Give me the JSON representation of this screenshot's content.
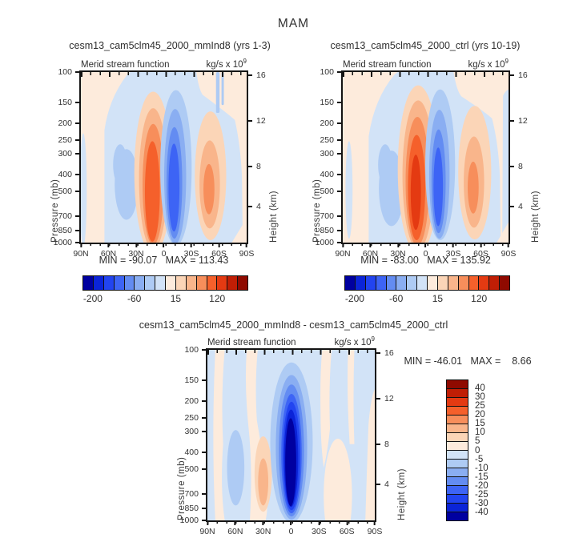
{
  "title": "MAM",
  "panel_header": {
    "title": "Merid stream function",
    "units": "kg/s x 10",
    "exp": "9"
  },
  "panels": {
    "left": {
      "subtitle": "cesm13_cam5clm45_2000_mmInd8 (yrs 1-3)",
      "min_max": "MIN = -90.07   MAX = 113.43"
    },
    "right": {
      "subtitle": "cesm13_cam5clm45_2000_ctrl (yrs 10-19)",
      "min_max": "MIN = -83.00   MAX = 135.92"
    },
    "diff": {
      "subtitle": "cesm13_cam5clm45_2000_mmInd8 - cesm13_cam5clm45_2000_ctrl",
      "min_max": "MIN = -46.01   MAX =    8.66"
    }
  },
  "axes": {
    "pressure_label": "Pressure (mb)",
    "height_label": "Height (km)",
    "pressure_ticks": [
      "100",
      "150",
      "200",
      "250",
      "300",
      "400",
      "500",
      "700",
      "850",
      "1000"
    ],
    "height_ticks": [
      "16",
      "12",
      "8",
      "4"
    ],
    "lon_ticks": [
      "90N",
      "60N",
      "30N",
      "0",
      "30S",
      "60S",
      "90S"
    ]
  },
  "palette": [
    "#0000A0",
    "#0B24D8",
    "#2244F0",
    "#3D64F5",
    "#638CF2",
    "#8AAEF2",
    "#AECBF4",
    "#D2E3F7",
    "#FDEBDC",
    "#FBD5B7",
    "#F9B58B",
    "#F78E5B",
    "#F5602B",
    "#E43A12",
    "#C01E05",
    "#8F0A00"
  ],
  "colorbar": {
    "labels": [
      "-200",
      "-60",
      "15",
      "120"
    ]
  },
  "diff_legend": {
    "colors": [
      "#8F0A00",
      "#C01E05",
      "#E43A12",
      "#F5602B",
      "#F78E5B",
      "#F9B58B",
      "#FBD5B7",
      "#FDEBDC",
      "#D2E3F7",
      "#AECBF4",
      "#8AAEF2",
      "#638CF2",
      "#3D64F5",
      "#2244F0",
      "#0B24D8",
      "#0000A0"
    ],
    "labels": [
      "40",
      "30",
      "25",
      "20",
      "15",
      "10",
      "5",
      "0",
      "-5",
      "-10",
      "-15",
      "-20",
      "-25",
      "-30",
      "-40"
    ]
  },
  "chart_data": [
    {
      "type": "contour",
      "title": "cesm13_cam5clm45_2000_mmInd8 (yrs 1-3)",
      "field": "Merid stream function",
      "units": "kg/s x 10^9",
      "x_ticks": [
        "90N",
        "60N",
        "30N",
        "0",
        "30S",
        "60S",
        "90S"
      ],
      "y_left": {
        "label": "Pressure (mb)",
        "scale": "log",
        "ticks": [
          100,
          150,
          200,
          250,
          300,
          400,
          500,
          700,
          850,
          1000
        ]
      },
      "y_right": {
        "label": "Height (km)",
        "ticks": [
          16,
          12,
          8,
          4
        ]
      },
      "min": -90.07,
      "max": 113.43,
      "colorbar_tick_labels": [
        -200,
        -60,
        15,
        120
      ],
      "features": [
        {
          "sign": "positive",
          "center_lat": "10N",
          "vertical_extent_mb": [
            150,
            1000
          ],
          "peak_value": 113.43
        },
        {
          "sign": "negative",
          "center_lat": "15S",
          "vertical_extent_mb": [
            150,
            950
          ],
          "peak_value": -90.07
        },
        {
          "sign": "positive",
          "center_lat": "50S",
          "vertical_extent_mb": [
            200,
            850
          ]
        },
        {
          "sign": "weak-negative",
          "center_lat": "40N",
          "vertical_extent_mb": [
            300,
            700
          ]
        }
      ]
    },
    {
      "type": "contour",
      "title": "cesm13_cam5clm45_2000_ctrl (yrs 10-19)",
      "field": "Merid stream function",
      "units": "kg/s x 10^9",
      "x_ticks": [
        "90N",
        "60N",
        "30N",
        "0",
        "30S",
        "60S",
        "90S"
      ],
      "y_left": {
        "label": "Pressure (mb)",
        "scale": "log",
        "ticks": [
          100,
          150,
          200,
          250,
          300,
          400,
          500,
          700,
          850,
          1000
        ]
      },
      "y_right": {
        "label": "Height (km)",
        "ticks": [
          16,
          12,
          8,
          4
        ]
      },
      "min": -83.0,
      "max": 135.92,
      "colorbar_tick_labels": [
        -200,
        -60,
        15,
        120
      ],
      "features": [
        {
          "sign": "positive",
          "center_lat": "8N",
          "vertical_extent_mb": [
            150,
            1000
          ],
          "peak_value": 135.92
        },
        {
          "sign": "negative",
          "center_lat": "15S",
          "vertical_extent_mb": [
            150,
            950
          ],
          "peak_value": -83.0
        },
        {
          "sign": "positive",
          "center_lat": "50S",
          "vertical_extent_mb": [
            200,
            850
          ]
        },
        {
          "sign": "weak-negative",
          "center_lat": "38N",
          "vertical_extent_mb": [
            250,
            700
          ]
        }
      ]
    },
    {
      "type": "contour",
      "title": "cesm13_cam5clm45_2000_mmInd8 - cesm13_cam5clm45_2000_ctrl",
      "field": "Merid stream function",
      "units": "kg/s x 10^9",
      "x_ticks": [
        "90N",
        "60N",
        "30N",
        "0",
        "30S",
        "60S",
        "90S"
      ],
      "y_left": {
        "label": "Pressure (mb)",
        "scale": "log",
        "ticks": [
          100,
          150,
          200,
          250,
          300,
          400,
          500,
          700,
          850,
          1000
        ]
      },
      "y_right": {
        "label": "Height (km)",
        "ticks": [
          16,
          12,
          8,
          4
        ]
      },
      "min": -46.01,
      "max": 8.66,
      "legend_levels": [
        40,
        30,
        25,
        20,
        15,
        10,
        5,
        0,
        -5,
        -10,
        -15,
        -20,
        -25,
        -30,
        -40
      ],
      "features": [
        {
          "sign": "negative",
          "center_lat": "0",
          "vertical_extent_mb": [
            150,
            1000
          ],
          "peak_value": -46.01
        },
        {
          "sign": "weak-positive",
          "center_lat": "30N",
          "vertical_extent_mb": [
            400,
            850
          ],
          "peak_value": 8.66
        },
        {
          "sign": "weak-positive",
          "center_lat": "50S",
          "vertical_extent_mb": [
            450,
            1000
          ]
        }
      ]
    }
  ]
}
